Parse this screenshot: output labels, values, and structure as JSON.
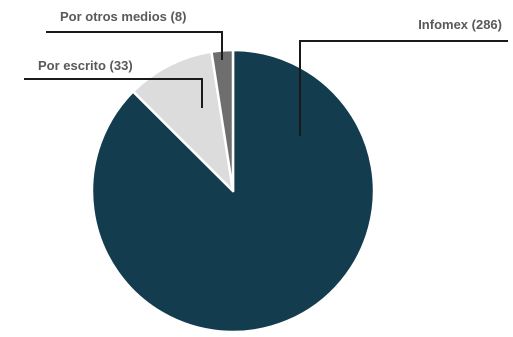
{
  "chart_data": {
    "type": "pie",
    "title": "",
    "slices": [
      {
        "label": "Infomex (286)",
        "category": "Infomex",
        "value": 286,
        "color": "#133c4f"
      },
      {
        "label": "Por escrito (33)",
        "category": "Por escrito",
        "value": 33,
        "color": "#dcdcdc"
      },
      {
        "label": "Por otros medios (8)",
        "category": "Por otros medios",
        "value": 8,
        "color": "#6e6e6e"
      }
    ],
    "legend": "none"
  }
}
